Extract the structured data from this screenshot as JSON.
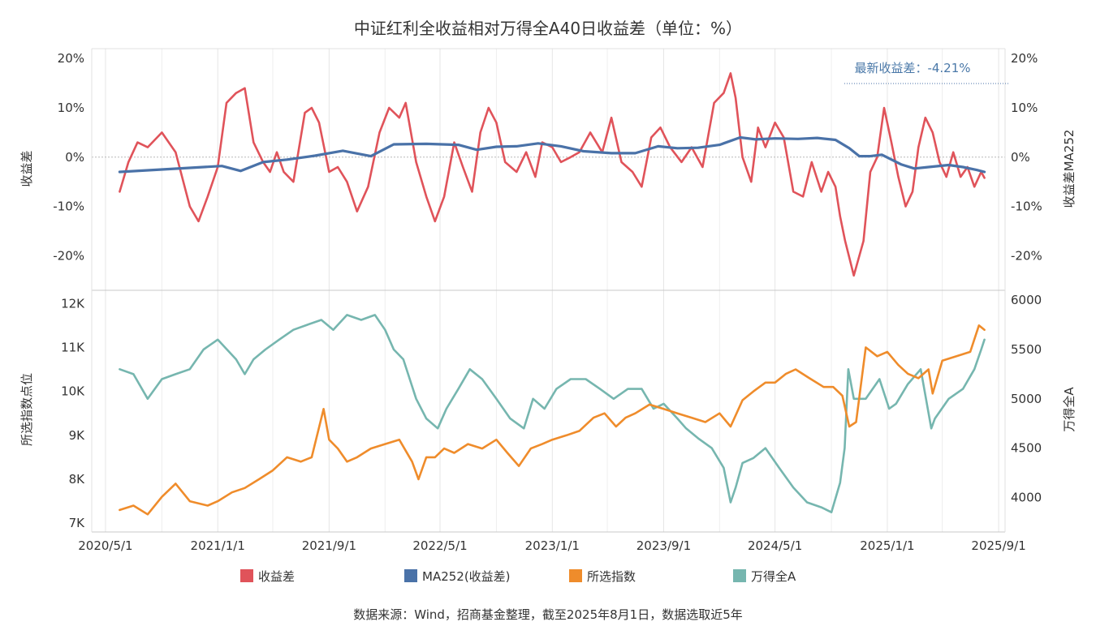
{
  "chart_data": [
    {
      "type": "line",
      "panel": "top",
      "title": "中证红利全收益相对万得全A40日收益差（单位：%）",
      "ylabel_left": "收益差",
      "ylabel_right": "收益差MA252",
      "ylim": [
        -27,
        22
      ],
      "y_ticks": [
        20,
        10,
        0,
        -10,
        -20
      ],
      "y_tick_labels": [
        "20%",
        "10%",
        "0%",
        "-10%",
        "-20%"
      ],
      "zero_line": true,
      "annotation": "最新收益差：-4.21%",
      "series": [
        {
          "name": "收益差",
          "color": "#e0535a",
          "axis": "left",
          "x": [
            "2020-06-01",
            "2020-06-20",
            "2020-07-10",
            "2020-08-01",
            "2020-09-01",
            "2020-10-01",
            "2020-11-01",
            "2020-11-20",
            "2020-12-10",
            "2021-01-01",
            "2021-01-20",
            "2021-02-10",
            "2021-03-01",
            "2021-03-20",
            "2021-04-10",
            "2021-04-25",
            "2021-05-10",
            "2021-05-25",
            "2021-06-15",
            "2021-07-10",
            "2021-07-25",
            "2021-08-10",
            "2021-09-01",
            "2021-09-20",
            "2021-10-10",
            "2021-11-01",
            "2021-11-25",
            "2021-12-20",
            "2022-01-10",
            "2022-02-01",
            "2022-02-15",
            "2022-03-10",
            "2022-04-01",
            "2022-04-20",
            "2022-05-10",
            "2022-06-01",
            "2022-06-20",
            "2022-07-10",
            "2022-07-28",
            "2022-08-15",
            "2022-09-01",
            "2022-09-20",
            "2022-10-15",
            "2022-11-05",
            "2022-11-25",
            "2022-12-10",
            "2023-01-01",
            "2023-01-20",
            "2023-02-10",
            "2023-03-01",
            "2023-03-25",
            "2023-04-20",
            "2023-05-10",
            "2023-06-01",
            "2023-06-25",
            "2023-07-15",
            "2023-08-05",
            "2023-08-25",
            "2023-09-15",
            "2023-10-10",
            "2023-11-01",
            "2023-11-25",
            "2023-12-20",
            "2024-01-10",
            "2024-01-25",
            "2024-02-05",
            "2024-02-20",
            "2024-03-10",
            "2024-03-25",
            "2024-04-10",
            "2024-05-01",
            "2024-05-20",
            "2024-06-10",
            "2024-07-01",
            "2024-07-20",
            "2024-08-10",
            "2024-08-25",
            "2024-09-10",
            "2024-09-20",
            "2024-10-01",
            "2024-10-20",
            "2024-11-10",
            "2024-11-25",
            "2024-12-10",
            "2024-12-25",
            "2025-01-10",
            "2025-01-25",
            "2025-02-10",
            "2025-02-25",
            "2025-03-10",
            "2025-03-25",
            "2025-04-10",
            "2025-04-25",
            "2025-05-10",
            "2025-05-25",
            "2025-06-10",
            "2025-06-25",
            "2025-07-10",
            "2025-07-25",
            "2025-08-01"
          ],
          "values": [
            -7,
            -1,
            3,
            2,
            5,
            1,
            -10,
            -13,
            -8,
            -2,
            11,
            13,
            14,
            3,
            -1,
            -3,
            1,
            -3,
            -5,
            9,
            10,
            7,
            -3,
            -2,
            -5,
            -11,
            -6,
            5,
            10,
            8,
            11,
            -1,
            -8,
            -13,
            -8,
            3,
            -2,
            -7,
            5,
            10,
            7,
            -1,
            -3,
            1,
            -4,
            3,
            2,
            -1,
            0,
            1,
            5,
            1,
            8,
            -1,
            -3,
            -6,
            4,
            6,
            2,
            -1,
            2,
            -2,
            11,
            13,
            17,
            12,
            0,
            -5,
            6,
            2,
            7,
            4,
            -7,
            -8,
            -1,
            -7,
            -3,
            -6,
            -12,
            -17,
            -24,
            -17,
            -3,
            0,
            10,
            3,
            -4,
            -10,
            -7,
            2,
            8,
            5,
            -1,
            -4,
            1,
            -4,
            -2,
            -6,
            -3,
            -4.21
          ]
        },
        {
          "name": "MA252(收益差)",
          "color": "#4a72a8",
          "axis": "left",
          "x": [
            "2020-06-01",
            "2020-09-01",
            "2020-12-01",
            "2021-01-10",
            "2021-02-20",
            "2021-04-10",
            "2021-06-01",
            "2021-08-01",
            "2021-10-01",
            "2021-12-01",
            "2022-01-20",
            "2022-04-01",
            "2022-06-10",
            "2022-07-20",
            "2022-09-01",
            "2022-10-15",
            "2022-12-01",
            "2023-01-20",
            "2023-03-10",
            "2023-05-10",
            "2023-07-01",
            "2023-08-20",
            "2023-10-01",
            "2023-11-15",
            "2024-01-01",
            "2024-02-15",
            "2024-03-20",
            "2024-05-01",
            "2024-06-20",
            "2024-08-01",
            "2024-09-10",
            "2024-10-10",
            "2024-11-01",
            "2024-11-25",
            "2024-12-20",
            "2025-02-01",
            "2025-03-01",
            "2025-04-01",
            "2025-05-15",
            "2025-06-15",
            "2025-07-15",
            "2025-08-01"
          ],
          "values": [
            -3,
            -2.5,
            -2,
            -1.8,
            -2.8,
            -1,
            -0.5,
            0.3,
            1.3,
            0.2,
            2.6,
            2.7,
            2.5,
            1.5,
            2.1,
            2.2,
            2.8,
            2.2,
            1.2,
            0.8,
            0.8,
            2.2,
            1.8,
            1.9,
            2.5,
            4,
            3.6,
            3.8,
            3.7,
            3.9,
            3.5,
            1.8,
            0.2,
            0.2,
            0.5,
            -1.5,
            -2.3,
            -2,
            -1.6,
            -2,
            -2.6,
            -3
          ]
        }
      ]
    },
    {
      "type": "line",
      "panel": "bottom",
      "ylabel_left": "所选指数点位",
      "ylabel_right": "万得全A",
      "ylim_left": [
        6800,
        12300
      ],
      "ylim_right": [
        3650,
        6100
      ],
      "y_ticks_left": [
        12000,
        11000,
        10000,
        9000,
        8000,
        7000
      ],
      "y_tick_labels_left": [
        "12K",
        "11K",
        "10K",
        "9K",
        "8K",
        "7K"
      ],
      "y_ticks_right": [
        6000,
        5500,
        5000,
        4500,
        4000
      ],
      "y_tick_labels_right": [
        "6000",
        "5500",
        "5000",
        "4500",
        "4000"
      ],
      "x_ticks": [
        "2020-05-01",
        "2021-01-01",
        "2021-09-01",
        "2022-05-01",
        "2023-01-01",
        "2023-09-01",
        "2024-05-01",
        "2025-01-01",
        "2025-09-01"
      ],
      "x_tick_labels": [
        "2020/5/1",
        "2021/1/1",
        "2021/9/1",
        "2022/5/1",
        "2023/1/1",
        "2023/9/1",
        "2024/5/1",
        "2025/1/1",
        "2025/9/1"
      ],
      "series": [
        {
          "name": "所选指数",
          "color": "#ef8c2b",
          "axis": "left",
          "x": [
            "2020-06-01",
            "2020-07-01",
            "2020-08-01",
            "2020-09-01",
            "2020-10-01",
            "2020-11-01",
            "2020-12-10",
            "2021-01-01",
            "2021-02-01",
            "2021-03-01",
            "2021-04-01",
            "2021-05-01",
            "2021-06-01",
            "2021-07-01",
            "2021-07-25",
            "2021-08-20",
            "2021-09-01",
            "2021-09-20",
            "2021-10-10",
            "2021-11-01",
            "2021-12-01",
            "2022-01-01",
            "2022-02-01",
            "2022-03-01",
            "2022-03-15",
            "2022-04-01",
            "2022-04-20",
            "2022-05-10",
            "2022-06-01",
            "2022-07-01",
            "2022-08-01",
            "2022-09-01",
            "2022-09-25",
            "2022-10-20",
            "2022-11-15",
            "2022-12-10",
            "2023-01-01",
            "2023-02-01",
            "2023-03-01",
            "2023-04-01",
            "2023-04-25",
            "2023-05-20",
            "2023-06-10",
            "2023-07-01",
            "2023-08-01",
            "2023-09-01",
            "2023-10-01",
            "2023-11-01",
            "2023-12-01",
            "2024-01-01",
            "2024-01-25",
            "2024-02-20",
            "2024-03-15",
            "2024-04-10",
            "2024-05-01",
            "2024-05-25",
            "2024-06-15",
            "2024-07-15",
            "2024-08-15",
            "2024-09-05",
            "2024-09-25",
            "2024-10-10",
            "2024-10-25",
            "2024-11-15",
            "2024-12-10",
            "2025-01-01",
            "2025-01-25",
            "2025-02-15",
            "2025-03-10",
            "2025-04-01",
            "2025-04-10",
            "2025-05-01",
            "2025-06-01",
            "2025-07-01",
            "2025-07-20",
            "2025-08-01"
          ],
          "values": [
            7300,
            7400,
            7200,
            7600,
            7900,
            7500,
            7400,
            7500,
            7700,
            7800,
            8000,
            8200,
            8500,
            8400,
            8500,
            9600,
            8900,
            8700,
            8400,
            8500,
            8700,
            8800,
            8900,
            8400,
            8000,
            8500,
            8500,
            8700,
            8600,
            8800,
            8700,
            8900,
            8600,
            8300,
            8700,
            8800,
            8900,
            9000,
            9100,
            9400,
            9500,
            9200,
            9400,
            9500,
            9700,
            9600,
            9500,
            9400,
            9300,
            9500,
            9200,
            9800,
            10000,
            10200,
            10200,
            10400,
            10500,
            10300,
            10100,
            10100,
            9900,
            9200,
            9300,
            11000,
            10800,
            10900,
            10600,
            10400,
            10300,
            10500,
            9950,
            10700,
            10800,
            10900,
            11500,
            11400
          ]
        },
        {
          "name": "万得全A",
          "color": "#76b6af",
          "axis": "right",
          "x": [
            "2020-06-01",
            "2020-07-01",
            "2020-08-01",
            "2020-09-01",
            "2020-10-01",
            "2020-11-01",
            "2020-12-01",
            "2021-01-01",
            "2021-02-10",
            "2021-03-01",
            "2021-03-20",
            "2021-04-15",
            "2021-05-15",
            "2021-06-15",
            "2021-07-15",
            "2021-08-15",
            "2021-09-10",
            "2021-10-10",
            "2021-11-10",
            "2021-12-10",
            "2022-01-01",
            "2022-01-20",
            "2022-02-10",
            "2022-03-10",
            "2022-04-01",
            "2022-04-26",
            "2022-05-15",
            "2022-06-10",
            "2022-07-05",
            "2022-08-01",
            "2022-09-01",
            "2022-10-01",
            "2022-10-31",
            "2022-11-20",
            "2022-12-15",
            "2023-01-10",
            "2023-02-10",
            "2023-03-15",
            "2023-04-15",
            "2023-05-15",
            "2023-06-15",
            "2023-07-15",
            "2023-08-10",
            "2023-09-01",
            "2023-10-01",
            "2023-10-20",
            "2023-11-15",
            "2023-12-15",
            "2024-01-10",
            "2024-01-25",
            "2024-02-05",
            "2024-02-20",
            "2024-03-15",
            "2024-04-10",
            "2024-05-10",
            "2024-06-10",
            "2024-07-10",
            "2024-08-10",
            "2024-09-01",
            "2024-09-20",
            "2024-09-30",
            "2024-10-08",
            "2024-10-20",
            "2024-11-15",
            "2024-12-15",
            "2025-01-05",
            "2025-01-20",
            "2025-02-15",
            "2025-03-15",
            "2025-04-07",
            "2025-04-15",
            "2025-05-15",
            "2025-06-15",
            "2025-07-10",
            "2025-07-25",
            "2025-08-01"
          ],
          "values": [
            5300,
            5250,
            5000,
            5200,
            5250,
            5300,
            5500,
            5600,
            5400,
            5250,
            5400,
            5500,
            5600,
            5700,
            5750,
            5800,
            5700,
            5850,
            5800,
            5850,
            5700,
            5500,
            5400,
            5000,
            4800,
            4700,
            4900,
            5100,
            5300,
            5200,
            5000,
            4800,
            4700,
            5000,
            4900,
            5100,
            5200,
            5200,
            5100,
            5000,
            5100,
            5100,
            4900,
            4950,
            4800,
            4700,
            4600,
            4500,
            4300,
            3950,
            4100,
            4350,
            4400,
            4500,
            4300,
            4100,
            3950,
            3900,
            3850,
            4150,
            4500,
            5300,
            5000,
            5000,
            5200,
            4900,
            4950,
            5150,
            5300,
            4700,
            4800,
            5000,
            5100,
            5300,
            5500,
            5600
          ]
        }
      ]
    }
  ],
  "legend": [
    {
      "label": "收益差",
      "color": "#e0535a"
    },
    {
      "label": "MA252(收益差)",
      "color": "#4a72a8"
    },
    {
      "label": "所选指数",
      "color": "#ef8c2b"
    },
    {
      "label": "万得全A",
      "color": "#76b6af"
    }
  ],
  "source": "数据来源：Wind，招商基金整理，截至2025年8月1日，数据选取近5年"
}
